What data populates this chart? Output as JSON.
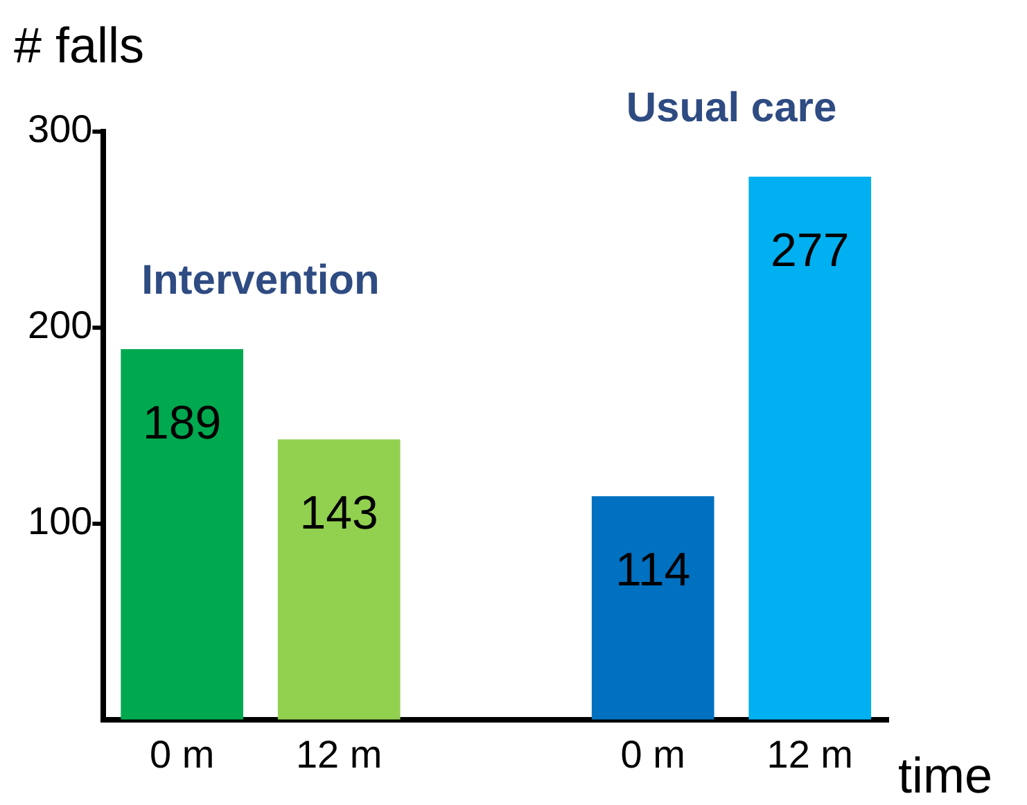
{
  "chart_data": {
    "type": "bar",
    "ylabel": "# falls",
    "xlabel": "time",
    "categories": [
      "0 m",
      "12 m",
      null,
      "0 m",
      "12 m"
    ],
    "values": [
      189,
      143,
      null,
      114,
      277
    ],
    "colors": [
      "#00a84f",
      "#92d050",
      "#ffffff",
      "#0070c0",
      "#00b0f0"
    ],
    "ylim": [
      0,
      300
    ],
    "yticks": [
      100,
      200,
      300
    ],
    "data_labels": true,
    "grid": false,
    "legend": false,
    "annotations": [
      "Intervention",
      "Usual care"
    ]
  }
}
